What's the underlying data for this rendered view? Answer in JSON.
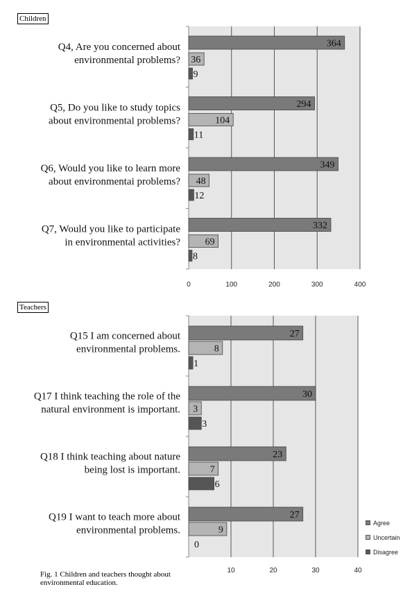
{
  "colors": {
    "agree": "#7a7a7a",
    "uncertain": "#b4b4b4",
    "disagree": "#565656",
    "plot_bg": "#e6e6e6"
  },
  "legend": [
    "Agree",
    "Uncertain",
    "Disagree"
  ],
  "caption": "Fig. 1 Children and teachers thought about environmental education.",
  "chart_data": [
    {
      "type": "bar",
      "orientation": "horizontal",
      "title": "Children",
      "xlim": [
        0,
        400
      ],
      "ticks": [
        "0",
        "100",
        "200",
        "300",
        "400"
      ],
      "categories": [
        [
          "Q4, Are you concerned about",
          "environmental problems?"
        ],
        [
          "Q5, Do you like to study topics",
          "about environmental problems?"
        ],
        [
          "Q6, Would you like to learn more",
          "about environmentai problems?"
        ],
        [
          "Q7, Would you like to participate",
          "in environmental activities?"
        ]
      ],
      "series": [
        {
          "name": "Agree",
          "values": [
            364,
            294,
            349,
            332
          ]
        },
        {
          "name": "Uncertain",
          "values": [
            36,
            104,
            48,
            69
          ]
        },
        {
          "name": "Disagree",
          "values": [
            9,
            11,
            12,
            8
          ]
        }
      ],
      "legend_position": "none"
    },
    {
      "type": "bar",
      "orientation": "horizontal",
      "title": "Teachers",
      "xlim": [
        0,
        40
      ],
      "ticks": [
        "10",
        "20",
        "30",
        "40"
      ],
      "categories": [
        [
          "Q15 I am concerned about",
          "environmental problems."
        ],
        [
          "Q17 I think teaching the role of the",
          "natural environment is important."
        ],
        [
          "Q18 I think teaching about nature",
          "being lost is important."
        ],
        [
          "Q19 I want to teach more about",
          "environmental problems."
        ]
      ],
      "series": [
        {
          "name": "Agree",
          "values": [
            27,
            30,
            23,
            27
          ]
        },
        {
          "name": "Uncertain",
          "values": [
            8,
            3,
            7,
            9
          ]
        },
        {
          "name": "Disagree",
          "values": [
            1,
            3,
            6,
            0
          ]
        }
      ],
      "legend_position": "right"
    }
  ]
}
